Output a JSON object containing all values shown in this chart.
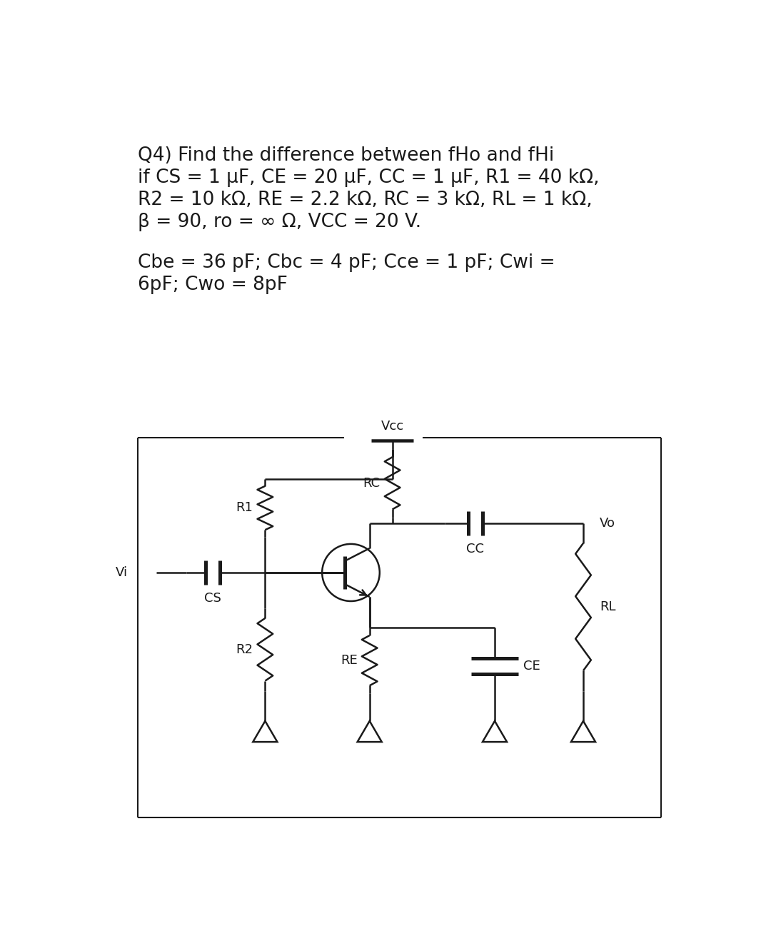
{
  "title_line1": "Q4) Find the difference between fHo and fHi",
  "title_line2": "if CS = 1 μF, CE = 20 μF, CC = 1 μF, R1 = 40 kΩ,",
  "title_line3": "R2 = 10 kΩ, RE = 2.2 kΩ, RC = 3 kΩ, RL = 1 kΩ,",
  "title_line4": "β = 90, ro = ∞ Ω, VCC = 20 V.",
  "cap_line1": "Cbe = 36 pF; Cbc = 4 pF; Cce = 1 pF; Cwi =",
  "cap_line2": "6pF; Cwo = 8pF",
  "bg_color": "#ffffff",
  "text_color": "#1a1a1a",
  "line_color": "#1a1a1a",
  "font_size": 19,
  "label_font_size": 13
}
